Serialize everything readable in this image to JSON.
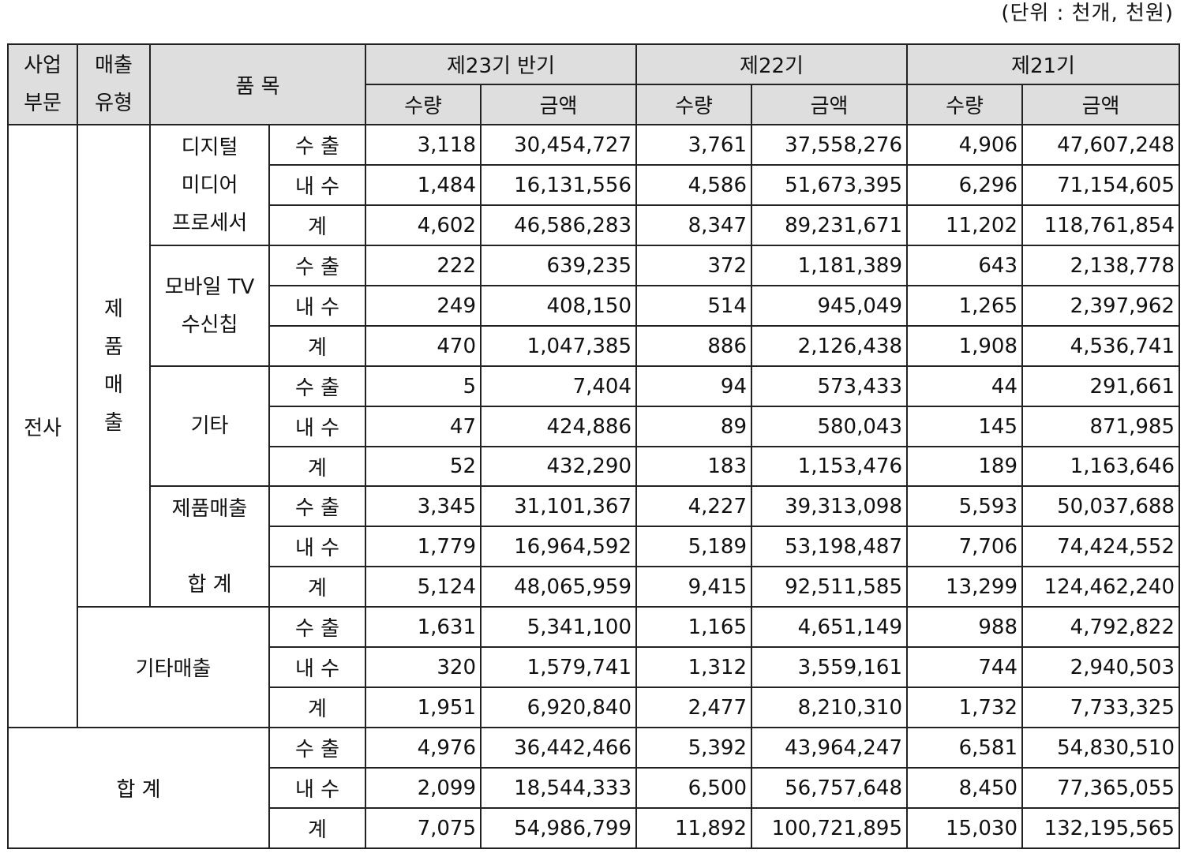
{
  "unit_note": "(단위 : 천개, 천원)",
  "header": {
    "segment": [
      "사업",
      "부문"
    ],
    "sales_type": [
      "매출",
      "유형"
    ],
    "item": "품 목",
    "periods": [
      "제23기 반기",
      "제22기",
      "제21기"
    ],
    "qty": "수량",
    "amount": "금액"
  },
  "labels": {
    "segment": "전사",
    "product_sales": [
      "제",
      "품",
      "매",
      "출"
    ],
    "other_sales": "기타매출",
    "grand_total": "합 계",
    "export": "수 출",
    "domestic": "내 수",
    "subtotal": "계"
  },
  "groups": [
    {
      "name_lines": [
        "디지털",
        "미디어",
        "프로세서"
      ]
    },
    {
      "name_lines": [
        "모바일 TV",
        "수신칩"
      ]
    },
    {
      "name_lines": [
        "기타"
      ]
    },
    {
      "name_lines": [
        "제품매출",
        "",
        "합 계"
      ]
    }
  ],
  "rows": [
    [
      "3,118",
      "30,454,727",
      "3,761",
      "37,558,276",
      "4,906",
      "47,607,248"
    ],
    [
      "1,484",
      "16,131,556",
      "4,586",
      "51,673,395",
      "6,296",
      "71,154,605"
    ],
    [
      "4,602",
      "46,586,283",
      "8,347",
      "89,231,671",
      "11,202",
      "118,761,854"
    ],
    [
      "222",
      "639,235",
      "372",
      "1,181,389",
      "643",
      "2,138,778"
    ],
    [
      "249",
      "408,150",
      "514",
      "945,049",
      "1,265",
      "2,397,962"
    ],
    [
      "470",
      "1,047,385",
      "886",
      "2,126,438",
      "1,908",
      "4,536,741"
    ],
    [
      "5",
      "7,404",
      "94",
      "573,433",
      "44",
      "291,661"
    ],
    [
      "47",
      "424,886",
      "89",
      "580,043",
      "145",
      "871,985"
    ],
    [
      "52",
      "432,290",
      "183",
      "1,153,476",
      "189",
      "1,163,646"
    ],
    [
      "3,345",
      "31,101,367",
      "4,227",
      "39,313,098",
      "5,593",
      "50,037,688"
    ],
    [
      "1,779",
      "16,964,592",
      "5,189",
      "53,198,487",
      "7,706",
      "74,424,552"
    ],
    [
      "5,124",
      "48,065,959",
      "9,415",
      "92,511,585",
      "13,299",
      "124,462,240"
    ],
    [
      "1,631",
      "5,341,100",
      "1,165",
      "4,651,149",
      "988",
      "4,792,822"
    ],
    [
      "320",
      "1,579,741",
      "1,312",
      "3,559,161",
      "744",
      "2,940,503"
    ],
    [
      "1,951",
      "6,920,840",
      "2,477",
      "8,210,310",
      "1,732",
      "7,733,325"
    ],
    [
      "4,976",
      "36,442,466",
      "5,392",
      "43,964,247",
      "6,581",
      "54,830,510"
    ],
    [
      "2,099",
      "18,544,333",
      "6,500",
      "56,757,648",
      "8,450",
      "77,365,055"
    ],
    [
      "7,075",
      "54,986,799",
      "11,892",
      "100,721,895",
      "15,030",
      "132,195,565"
    ]
  ]
}
